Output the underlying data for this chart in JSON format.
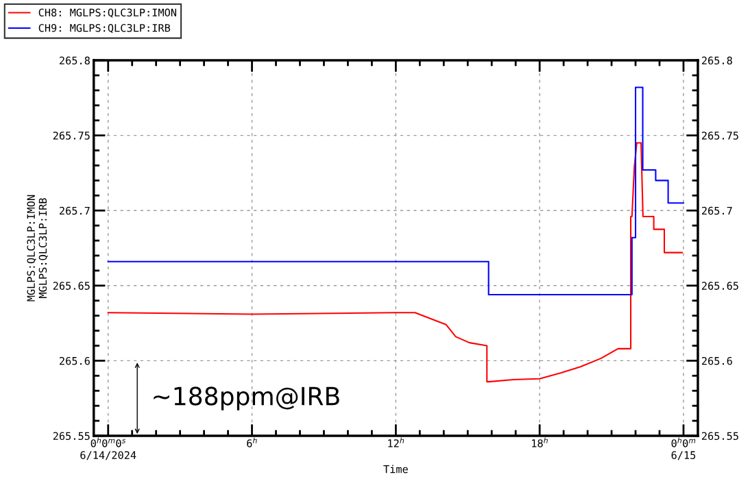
{
  "chart_data": {
    "type": "line",
    "xlabel": "Time",
    "ylabel": "MGLPS:QLC3LP:IMON\nMGLPS:QLC3LP:IRB",
    "xlim": [
      -0.6,
      24.6
    ],
    "ylim": [
      265.55,
      265.8
    ],
    "y2lim": [
      265.55,
      265.8
    ],
    "xticks": [
      {
        "value": 0,
        "label": "0$^{h}$0$^{m}$0$^{s}$\n6/14/2024"
      },
      {
        "value": 6,
        "label": "6$^{h}$"
      },
      {
        "value": 12,
        "label": "12$^{h}$"
      },
      {
        "value": 18,
        "label": "18$^{h}$"
      },
      {
        "value": 24,
        "label": "0$^{h}$0$^{m}$\n6/15"
      }
    ],
    "yticks": [
      265.55,
      265.6,
      265.65,
      265.7,
      265.75,
      265.8
    ],
    "y2ticks": [
      265.55,
      265.6,
      265.65,
      265.7,
      265.75,
      265.8
    ],
    "grid": true,
    "legend": "top left",
    "series": [
      {
        "name": "CH8: MGLPS:QLC3LP:IMON",
        "color": "#ff0000",
        "x": [
          0,
          6,
          12,
          12.8,
          13.45,
          14.1,
          14.5,
          15.07,
          15.8,
          15.8,
          15.87,
          16.9,
          18.0,
          18.9,
          19.7,
          20.55,
          21.27,
          21.8,
          21.8,
          21.8,
          21.85,
          21.95,
          22.05,
          22.23,
          22.31,
          22.76,
          22.76,
          23.2,
          23.2,
          23.94
        ],
        "values": [
          265.632,
          265.631,
          265.632,
          265.632,
          265.628,
          265.624,
          265.616,
          265.612,
          265.61,
          265.586,
          265.586,
          265.5874,
          265.588,
          265.592,
          265.596,
          265.6015,
          265.608,
          265.608,
          265.656,
          265.696,
          265.696,
          265.729,
          265.745,
          265.745,
          265.696,
          265.696,
          265.6875,
          265.6875,
          265.672,
          265.672
        ]
      },
      {
        "name": "CH9: MGLPS:QLC3LP:IRB",
        "color": "#0000ff",
        "type": "step",
        "x": [
          0,
          15.87,
          21.85,
          22.0,
          22.3,
          22.84,
          23.36,
          24.0
        ],
        "values": [
          265.666,
          265.644,
          265.682,
          265.782,
          265.727,
          265.72,
          265.705,
          265.705
        ]
      }
    ],
    "annotations": [
      "~188ppm@IRB"
    ]
  }
}
